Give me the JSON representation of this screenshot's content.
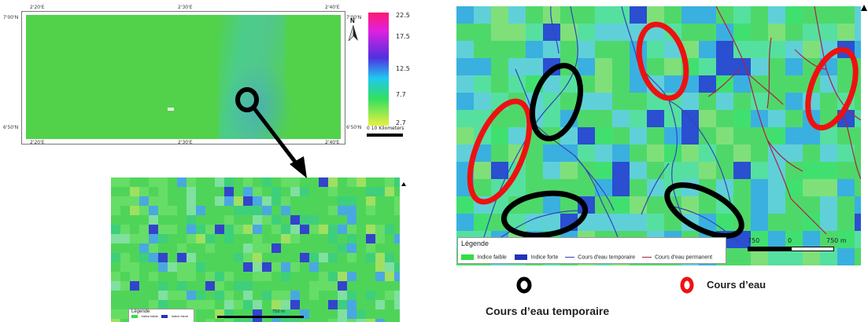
{
  "overview_map": {
    "top_ticks": [
      "2'20'E",
      "2'30'E",
      "2'40'E"
    ],
    "bottom_ticks": [
      "2'20'E",
      "2'30'E",
      "2'40'E"
    ],
    "left_ticks": [
      "7'00'N",
      "6'50'N"
    ],
    "right_ticks": [
      "7'00'N",
      "6'50'N"
    ],
    "north_label": "N",
    "scale_label": "0     10  Kilometers"
  },
  "colorbar": {
    "labels": [
      "22.5",
      "17.5",
      "12.5",
      "7.7",
      "2.7"
    ]
  },
  "zoom_map": {
    "legend_title": "Légende",
    "legend_items": [
      "Indice faible",
      "Indice élevé"
    ],
    "scale_label": "750 m"
  },
  "detail_map": {
    "legend_title": "Légende",
    "legend_items": [
      {
        "label": "Indice faible",
        "color": "#33dd44"
      },
      {
        "label": "Indice forte",
        "color": "#2233bb"
      },
      {
        "label": "Cours d'eau temporaire",
        "color": "#3344bb"
      },
      {
        "label": "Cours d'eau permanent",
        "color": "#aa2244"
      }
    ],
    "scale_left": "750",
    "scale_mid": "0",
    "scale_right": "750 m"
  },
  "annotations": {
    "red_label": "Cours d’eau",
    "black_label": "Cours d’eau temporaire"
  },
  "colors": {
    "red_ellipse": "#ee1111",
    "black_ellipse": "#000000",
    "river_temporary": "#3344bb",
    "river_permanent": "#aa2244"
  }
}
